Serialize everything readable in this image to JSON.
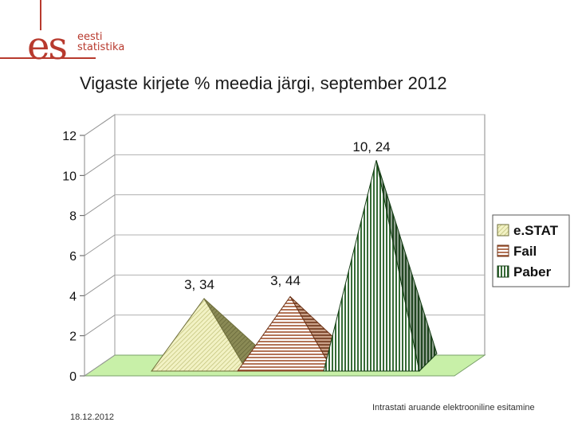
{
  "header": {
    "logo_mark": "es",
    "logo_line1": "eesti",
    "logo_line2": "statistika",
    "title": "Vigaste kirjete % meedia järgi, september 2012"
  },
  "footer": {
    "date": "18.12.2012",
    "caption": "Intrastati aruande elektrooniline esitamine"
  },
  "colors": {
    "brand": "#b83a2e",
    "floor": "#c8f0a8",
    "wall": "#ffffff",
    "estat": "#e6e6a0",
    "fail": "#a0522d",
    "paber": "#1f5a1f"
  },
  "chart_data": {
    "type": "bar",
    "style": "3d-pyramid",
    "categories": [
      "e.STAT",
      "Fail",
      "Paber"
    ],
    "values": [
      3.34,
      3.44,
      10.24
    ],
    "data_labels": [
      "3, 34",
      "3, 44",
      "10, 24"
    ],
    "y_ticks": [
      "0",
      "2",
      "4",
      "6",
      "8",
      "10",
      "12"
    ],
    "ylim": [
      0,
      12
    ],
    "legend": [
      "e.STAT",
      "Fail",
      "Paber"
    ],
    "legend_position": "right",
    "grid": true
  }
}
